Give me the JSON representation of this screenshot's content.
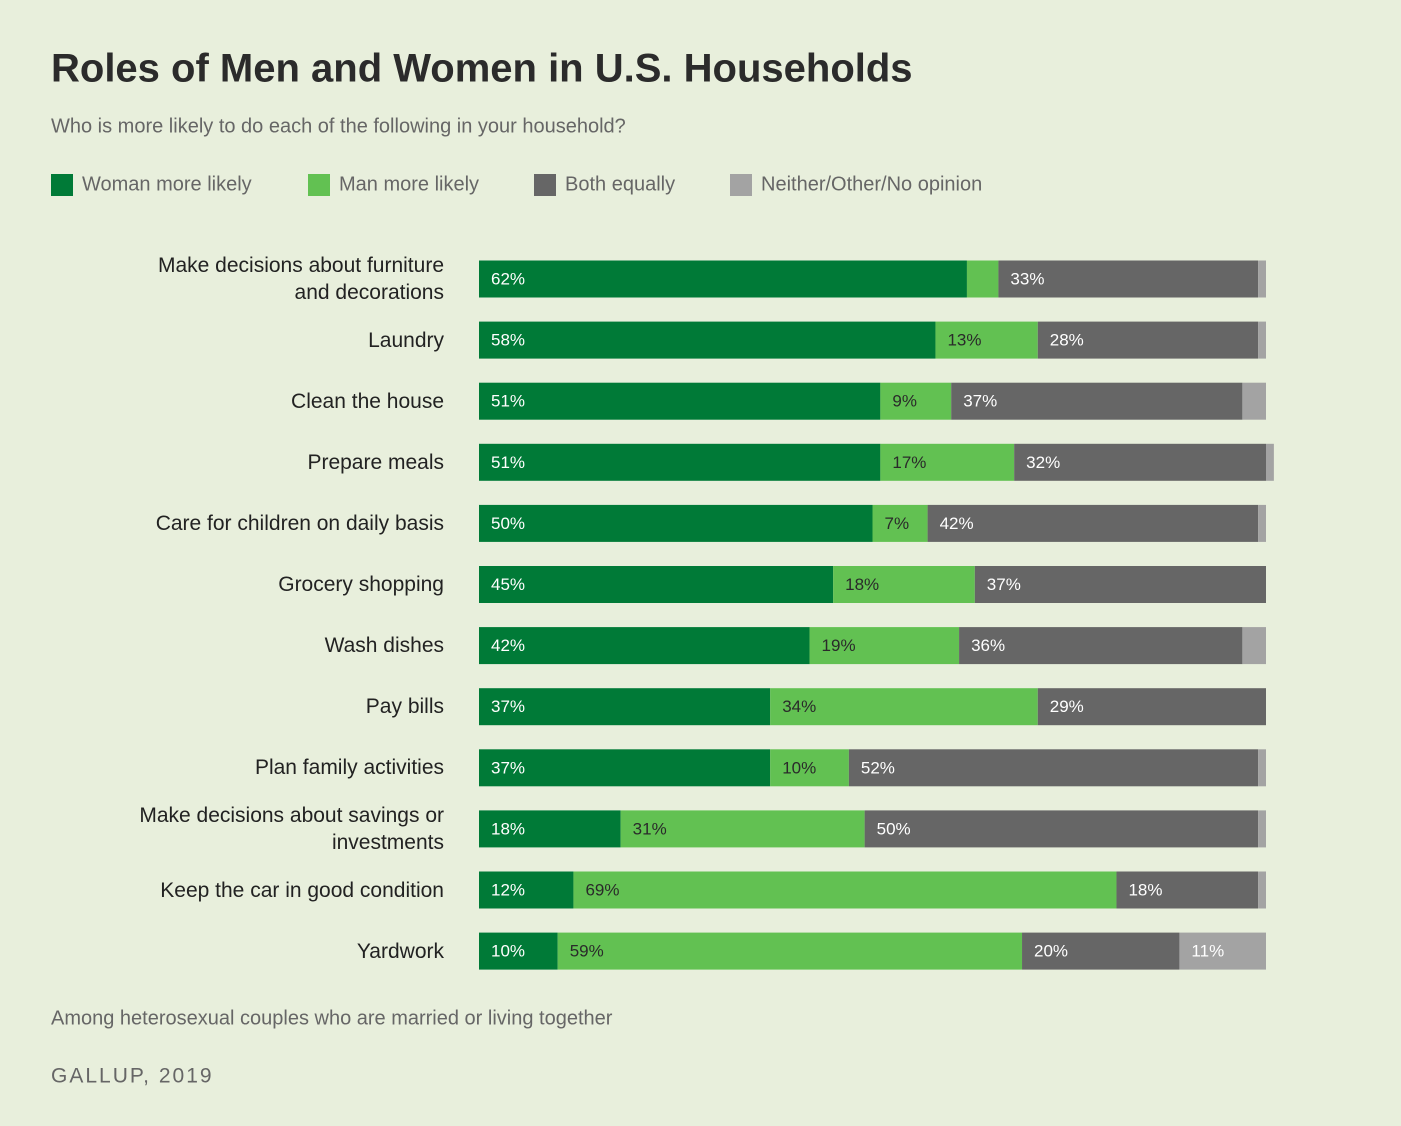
{
  "chart_data": {
    "type": "stacked-bar",
    "title": "Roles of Men and Women in U.S. Households",
    "subtitle": "Who is more likely to do each of the following in your household?",
    "note": "Among heterosexual couples who are married or living together",
    "source": "GALLUP, 2019",
    "xlim": [
      0,
      100
    ],
    "categories": [
      "Make decisions about furniture and decorations",
      "Laundry",
      "Clean the house",
      "Prepare meals",
      "Care for children on daily basis",
      "Grocery shopping",
      "Wash dishes",
      "Pay bills",
      "Plan family activities",
      "Make decisions about savings or investments",
      "Keep the car in good condition",
      "Yardwork"
    ],
    "series": [
      {
        "name": "Woman more likely",
        "color": "#007a37",
        "label_color": "#ffffff",
        "values": [
          62,
          58,
          51,
          51,
          50,
          45,
          42,
          37,
          37,
          18,
          12,
          10
        ],
        "value_labels": [
          "62%",
          "58%",
          "51%",
          "51%",
          "50%",
          "45%",
          "42%",
          "37%",
          "37%",
          "18%",
          "12%",
          "10%"
        ]
      },
      {
        "name": "Man more likely",
        "color": "#62c152",
        "label_color": "#2a2a2a",
        "values": [
          4,
          13,
          9,
          17,
          7,
          18,
          19,
          34,
          10,
          31,
          69,
          59
        ],
        "value_labels": [
          null,
          "13%",
          "9%",
          "17%",
          "7%",
          "18%",
          "19%",
          "34%",
          "10%",
          "31%",
          "69%",
          "59%"
        ]
      },
      {
        "name": "Both equally",
        "color": "#666666",
        "label_color": "#ffffff",
        "values": [
          33,
          28,
          37,
          32,
          42,
          37,
          36,
          29,
          52,
          50,
          18,
          20
        ],
        "value_labels": [
          "33%",
          "28%",
          "37%",
          "32%",
          "42%",
          "37%",
          "36%",
          "29%",
          "52%",
          "50%",
          "18%",
          "20%"
        ]
      },
      {
        "name": "Neither/Other/No opinion",
        "color": "#a3a3a3",
        "label_color": "#ffffff",
        "values": [
          1,
          1,
          3,
          1,
          1,
          0,
          3,
          0,
          1,
          1,
          1,
          11
        ],
        "value_labels": [
          null,
          null,
          null,
          null,
          null,
          null,
          null,
          null,
          null,
          null,
          null,
          "11%"
        ]
      }
    ]
  }
}
